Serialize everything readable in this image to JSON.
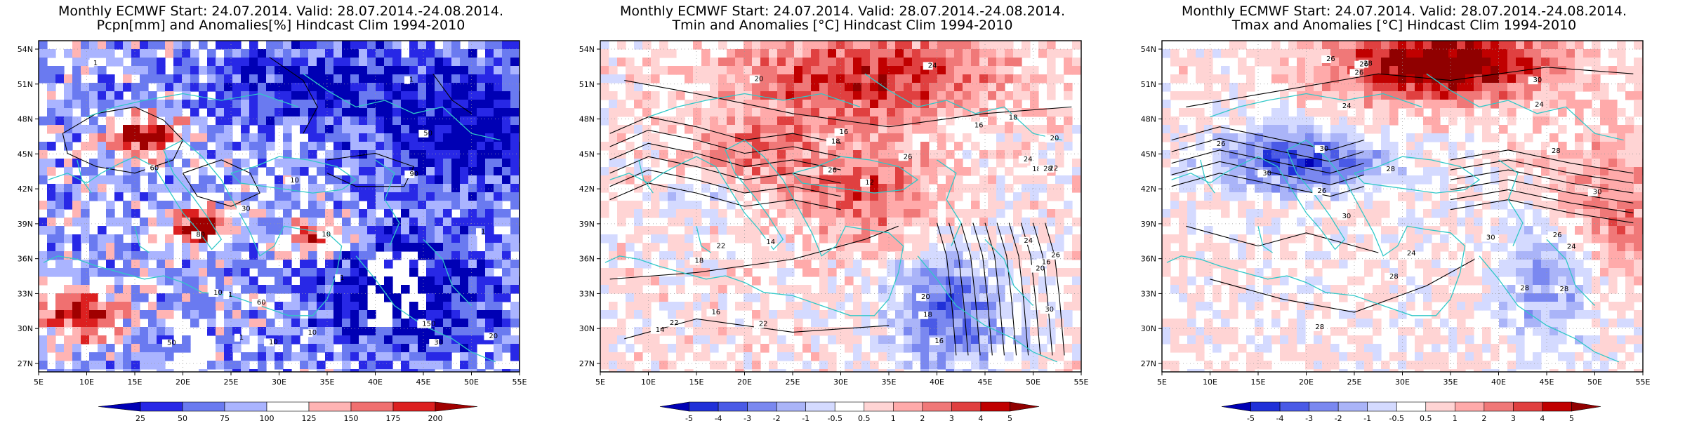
{
  "colors": {
    "coast": "#30c8c8",
    "contour": "#000000",
    "grid": "#9a9a9a",
    "deep_blue": "#1010c8",
    "mid_blue": "#6a7af0",
    "light_blue": "#c8d0ff",
    "light_red": "#ffc8c8",
    "mid_red": "#f07070",
    "deep_red": "#b40000",
    "missing": "#ffffff"
  },
  "lon_ticks": [
    "5E",
    "10E",
    "15E",
    "20E",
    "25E",
    "30E",
    "35E",
    "40E",
    "45E",
    "50E",
    "55E"
  ],
  "lat_ticks": [
    "54N",
    "51N",
    "48N",
    "45N",
    "42N",
    "39N",
    "36N",
    "33N",
    "30N",
    "27N"
  ],
  "panels": [
    {
      "id": "precip",
      "title_line1": "Monthly ECMWF Start: 24.07.2014. Valid: 28.07.2014.-24.08.2014.",
      "title_line2": "Pcpn[mm] and Anomalies[%] Hindcast Clim 1994-2010",
      "colorbar_labels": [
        "25",
        "50",
        "75",
        "100",
        "125",
        "150",
        "175",
        "200"
      ],
      "colorbar_colors": [
        "#0000b4",
        "#2828e6",
        "#6a7af0",
        "#aab4ff",
        "#ffffff",
        "#ffb4b4",
        "#f07070",
        "#dc2020",
        "#a00000"
      ],
      "contour_labels": [
        "30",
        "10",
        "90",
        "60",
        "150",
        "20",
        "60",
        "30",
        "50",
        "10",
        "10",
        "10",
        "80",
        "50",
        "1",
        "1",
        "1",
        "1",
        "10",
        "1",
        "1"
      ]
    },
    {
      "id": "tmin",
      "title_line1": "Monthly ECMWF Start: 24.07.2014. Valid: 28.07.2014.-24.08.2014.",
      "title_line2": "Tmin and Anomalies [°C] Hindcast Clim 1994-2010",
      "colorbar_labels": [
        "-5",
        "-4",
        "-3",
        "-2",
        "-1",
        "-0.5",
        "0.5",
        "1",
        "2",
        "3",
        "4",
        "5"
      ],
      "colorbar_colors": [
        "#0000b4",
        "#2030d8",
        "#4a5ae6",
        "#7a88f0",
        "#aab4f8",
        "#d4daff",
        "#ffffff",
        "#ffd4d4",
        "#ffaaaa",
        "#f07878",
        "#e04040",
        "#c00000",
        "#900000"
      ],
      "contour_labels": [
        "16",
        "16",
        "16",
        "14",
        "14",
        "18",
        "18",
        "18",
        "20",
        "12",
        "16",
        "20",
        "24",
        "22",
        "18",
        "16",
        "22",
        "24",
        "20",
        "18",
        "24",
        "26",
        "22",
        "26",
        "30",
        "20",
        "22",
        "28",
        "26"
      ]
    },
    {
      "id": "tmax",
      "title_line1": "Monthly ECMWF Start: 24.07.2014. Valid: 28.07.2014.-24.08.2014.",
      "title_line2": "Tmax and Anomalies [°C] Hindcast Clim 1994-2010",
      "colorbar_labels": [
        "-5",
        "-4",
        "-3",
        "-2",
        "-1",
        "-0.5",
        "0.5",
        "1",
        "2",
        "3",
        "4",
        "5"
      ],
      "colorbar_colors": [
        "#0000b4",
        "#2030d8",
        "#4a5ae6",
        "#7a88f0",
        "#aab4f8",
        "#d4daff",
        "#ffffff",
        "#ffd4d4",
        "#ffaaaa",
        "#f07878",
        "#e04040",
        "#c00000",
        "#900000"
      ],
      "contour_labels": [
        "24",
        "26",
        "26",
        "24",
        "28",
        "28",
        "30",
        "30",
        "24",
        "26",
        "26",
        "28",
        "30",
        "24",
        "26",
        "28",
        "30",
        "28",
        "26",
        "30",
        "30",
        "28",
        "28"
      ]
    }
  ]
}
